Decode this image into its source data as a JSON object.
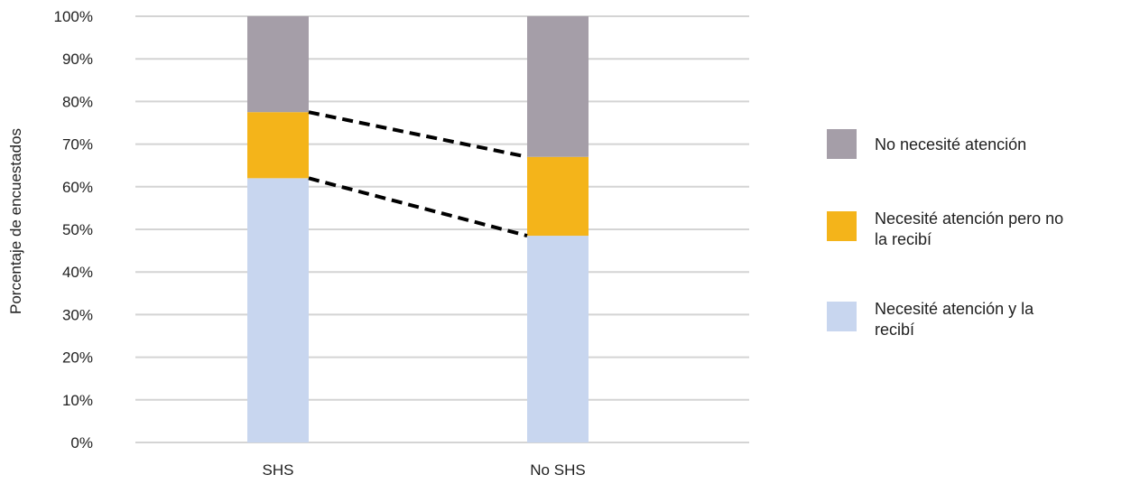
{
  "chart_data": {
    "type": "bar",
    "stacked": true,
    "title": "",
    "xlabel": "",
    "ylabel": "Porcentaje de encuestados",
    "ylim": [
      0,
      100
    ],
    "y_ticks": [
      "0%",
      "10%",
      "20%",
      "30%",
      "40%",
      "50%",
      "60%",
      "70%",
      "80%",
      "90%",
      "100%"
    ],
    "categories": [
      "SHS",
      "No SHS"
    ],
    "series": [
      {
        "name": "Necesité atención y la recibí",
        "values": [
          62,
          48.5
        ],
        "color": "#c8d6ef"
      },
      {
        "name": "Necesité atención pero no la recibí",
        "values": [
          15.5,
          18.5
        ],
        "color": "#f4b41a"
      },
      {
        "name": "No necesité atención",
        "values": [
          22.5,
          33
        ],
        "color": "#a59ea8"
      }
    ],
    "connector_lines": [
      {
        "from_category": "SHS",
        "to_category": "No SHS",
        "from_value": 77.5,
        "to_value": 67,
        "style": "dashed"
      },
      {
        "from_category": "SHS",
        "to_category": "No SHS",
        "from_value": 62,
        "to_value": 48.5,
        "style": "dashed"
      }
    ],
    "grid": true,
    "legend_position": "right",
    "legend": [
      {
        "label": "No necesité atención",
        "color": "#a59ea8"
      },
      {
        "label": "Necesité atención pero no\nla recibí",
        "color": "#f4b41a"
      },
      {
        "label": "Necesité atención y la\nrecibí",
        "color": "#c8d6ef"
      }
    ]
  }
}
